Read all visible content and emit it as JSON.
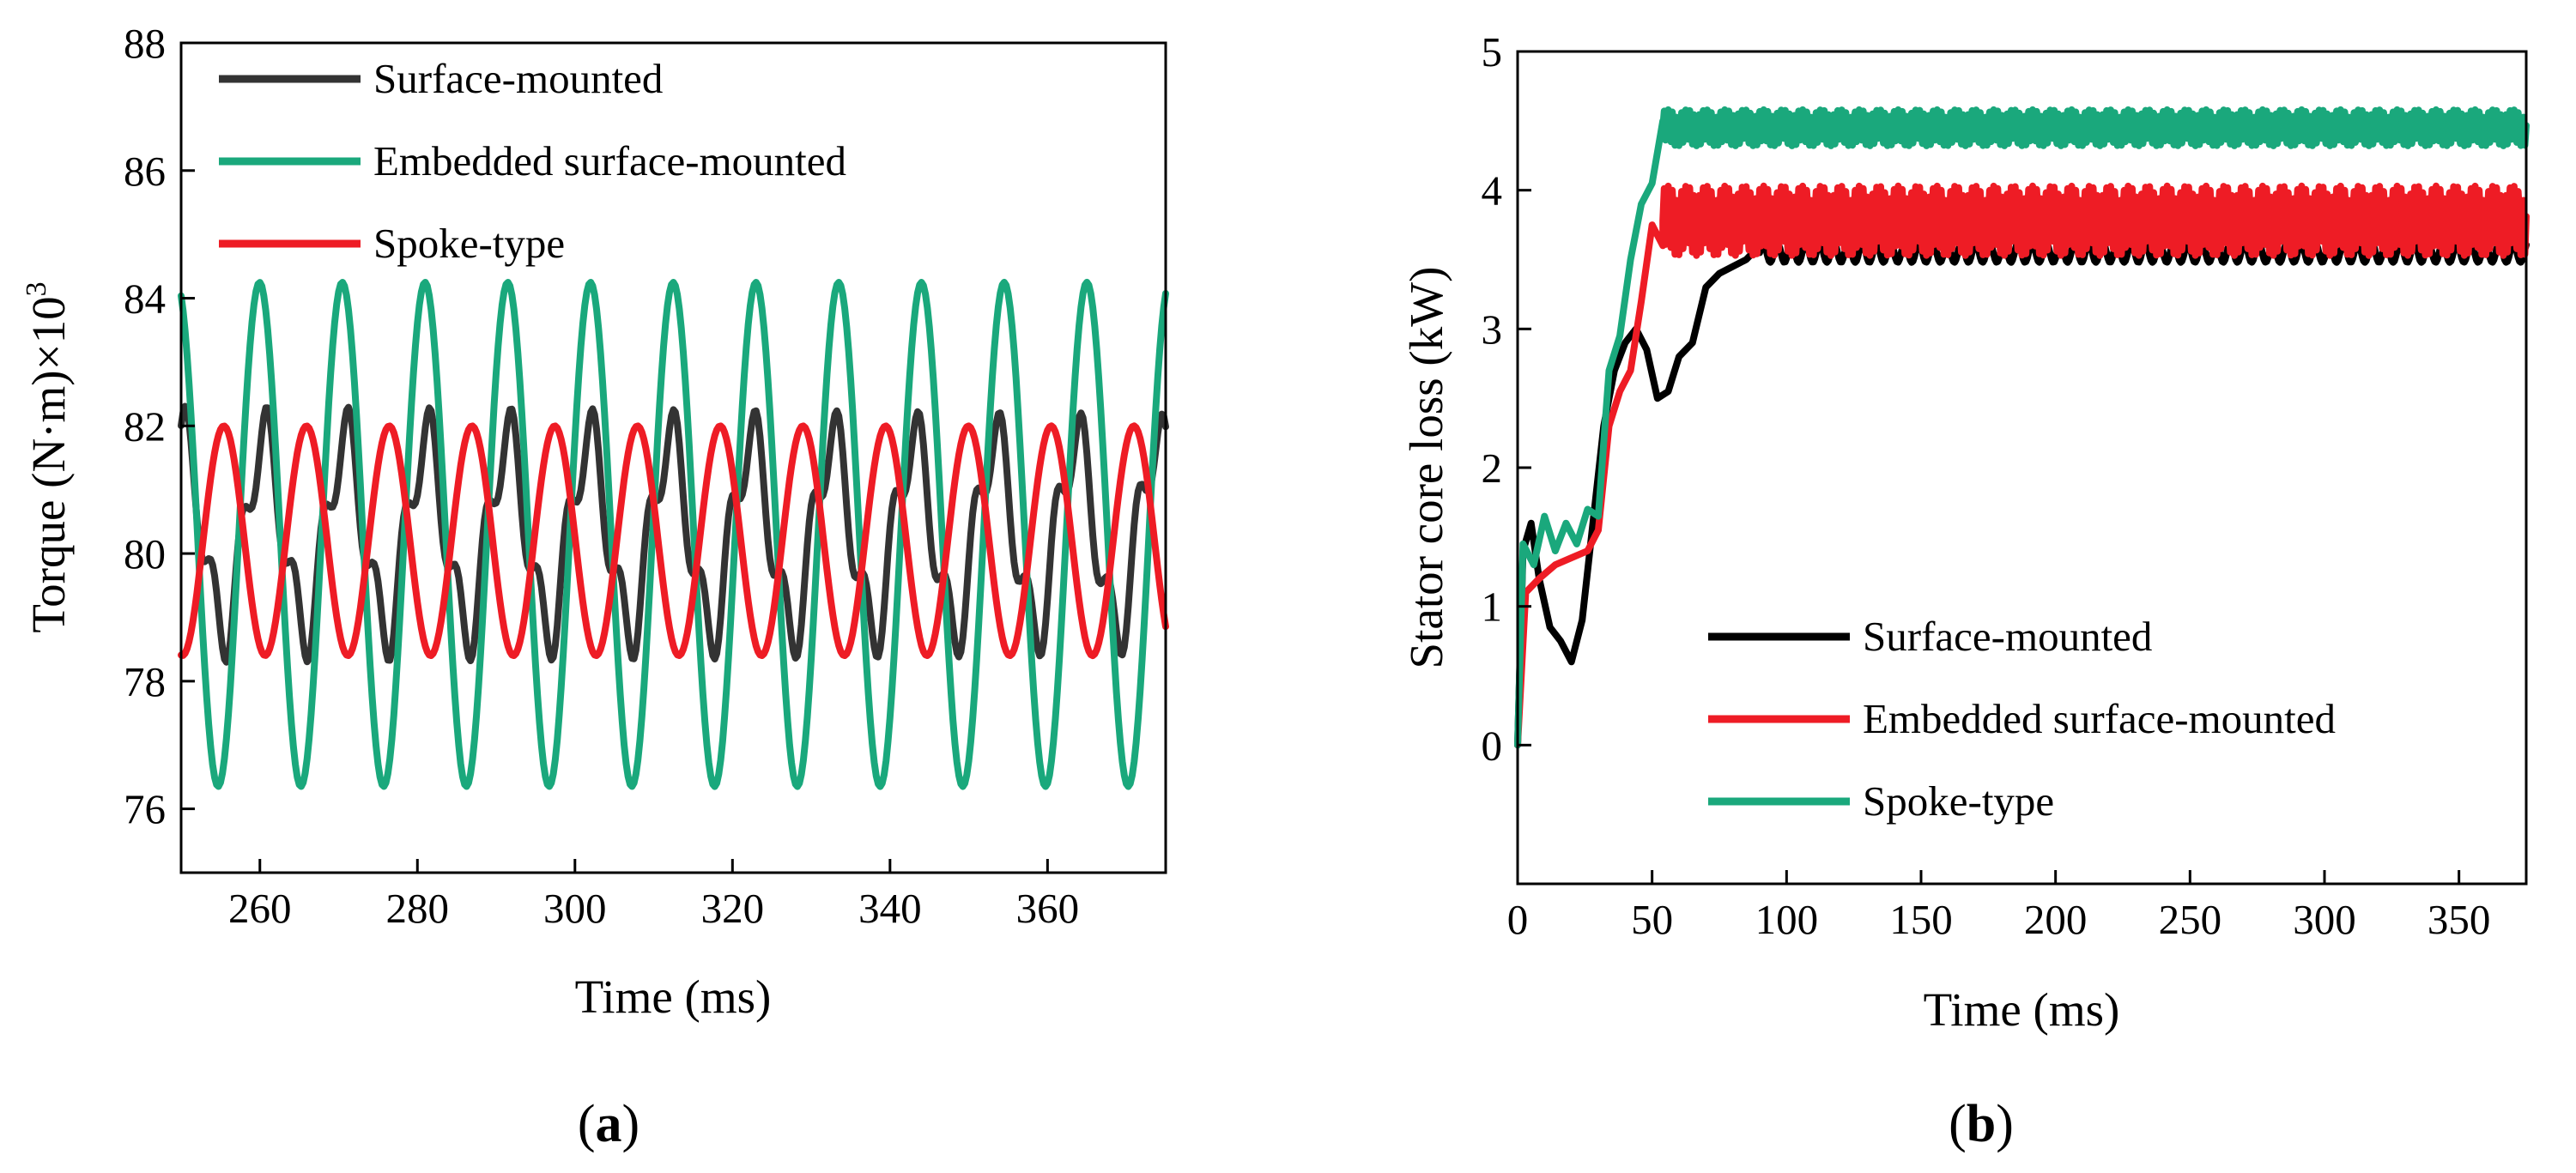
{
  "chart_data": [
    {
      "type": "line",
      "panel_label": "a",
      "xlabel": "Time (ms)",
      "ylabel": "Torque (N·m)×10",
      "ylabel_sup": "3",
      "xlim": [
        250,
        375
      ],
      "ylim": [
        75,
        88
      ],
      "xticks": [
        260,
        280,
        300,
        320,
        340,
        360
      ],
      "yticks": [
        76,
        78,
        80,
        82,
        84,
        86,
        88
      ],
      "legend_position": "top-left",
      "series": [
        {
          "name": "Surface-mounted",
          "color": "#333333",
          "mean": 80.3,
          "amp": 1.5,
          "freq": 0.097,
          "phase": 1.45,
          "amp2": 0.55,
          "freq2": 0.29,
          "phase2": 0.4
        },
        {
          "name": "Embedded surface-mounted",
          "color": "#1aa87c",
          "mean": 80.3,
          "amp": 3.95,
          "freq": 0.0952,
          "phase": 1.9
        },
        {
          "name": "Spoke-type",
          "color": "#ee1c25",
          "mean": 80.2,
          "amp": 1.8,
          "freq": 0.0952,
          "phase": -1.67
        }
      ]
    },
    {
      "type": "line",
      "panel_label": "b",
      "xlabel": "Time (ms)",
      "ylabel": "Stator core loss (kW)",
      "xlim": [
        0,
        375
      ],
      "ylim": [
        -1,
        5
      ],
      "xticks": [
        0,
        50,
        100,
        150,
        200,
        250,
        300,
        350
      ],
      "yticks": [
        0,
        1,
        2,
        3,
        4,
        5
      ],
      "legend_position": "bottom-right",
      "series": [
        {
          "name": "Surface-mounted",
          "color": "#000000",
          "points": [
            [
              0,
              0
            ],
            [
              2,
              1.4
            ],
            [
              5,
              1.6
            ],
            [
              8,
              1.2
            ],
            [
              12,
              0.85
            ],
            [
              16,
              0.75
            ],
            [
              20,
              0.6
            ],
            [
              24,
              0.9
            ],
            [
              28,
              1.6
            ],
            [
              32,
              2.3
            ],
            [
              36,
              2.7
            ],
            [
              40,
              2.9
            ],
            [
              44,
              3.0
            ],
            [
              48,
              2.85
            ],
            [
              52,
              2.5
            ],
            [
              56,
              2.55
            ],
            [
              60,
              2.8
            ],
            [
              65,
              2.9
            ],
            [
              70,
              3.3
            ],
            [
              75,
              3.4
            ],
            [
              80,
              3.45
            ],
            [
              85,
              3.5
            ],
            [
              90,
              3.6
            ]
          ],
          "steady_mean": 3.55,
          "steady_amp": 0.07,
          "steady_freq": 0.19
        },
        {
          "name": "Embedded surface-mounted",
          "color": "#ee1c25",
          "points": [
            [
              0,
              0
            ],
            [
              3,
              1.1
            ],
            [
              8,
              1.2
            ],
            [
              14,
              1.3
            ],
            [
              20,
              1.35
            ],
            [
              26,
              1.4
            ],
            [
              30,
              1.55
            ],
            [
              34,
              2.3
            ],
            [
              38,
              2.55
            ],
            [
              42,
              2.7
            ],
            [
              46,
              3.2
            ],
            [
              50,
              3.75
            ],
            [
              54,
              3.6
            ]
          ],
          "steady_mean": 3.78,
          "steady_amp": 0.25,
          "steady_freq": 0.62
        },
        {
          "name": "Spoke-type",
          "color": "#1aa87c",
          "points": [
            [
              0,
              0
            ],
            [
              2,
              1.45
            ],
            [
              6,
              1.3
            ],
            [
              10,
              1.65
            ],
            [
              14,
              1.4
            ],
            [
              18,
              1.6
            ],
            [
              22,
              1.45
            ],
            [
              26,
              1.7
            ],
            [
              30,
              1.65
            ],
            [
              34,
              2.7
            ],
            [
              38,
              2.95
            ],
            [
              42,
              3.5
            ],
            [
              46,
              3.9
            ],
            [
              50,
              4.05
            ],
            [
              54,
              4.5
            ]
          ],
          "steady_mean": 4.45,
          "steady_amp": 0.13,
          "steady_freq": 0.62
        }
      ]
    }
  ]
}
